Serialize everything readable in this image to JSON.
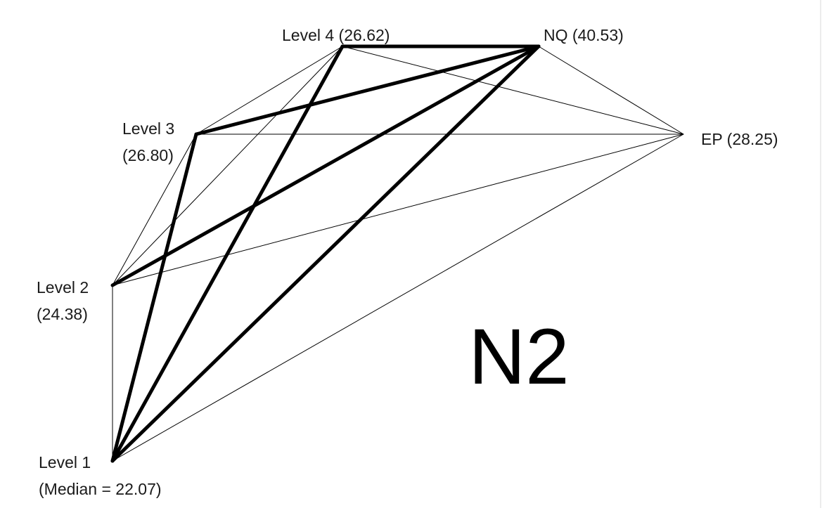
{
  "diagram": {
    "title": "N2",
    "nodes": [
      {
        "id": "level1",
        "label_lines": [
          "Level 1",
          "(Median = 22.07)"
        ]
      },
      {
        "id": "level2",
        "label_lines": [
          "Level 2",
          "(24.38)"
        ]
      },
      {
        "id": "level3",
        "label_lines": [
          "Level 3",
          "(26.80)"
        ]
      },
      {
        "id": "level4",
        "label_lines": [
          "Level 4 (26.62)"
        ]
      },
      {
        "id": "nq",
        "label_lines": [
          "NQ (40.53)"
        ]
      },
      {
        "id": "ep",
        "label_lines": [
          "EP (28.25)"
        ]
      }
    ],
    "edges": [
      {
        "from": "level1",
        "to": "level2",
        "weight": "thin"
      },
      {
        "from": "level1",
        "to": "level3",
        "weight": "thick"
      },
      {
        "from": "level1",
        "to": "level4",
        "weight": "thick"
      },
      {
        "from": "level1",
        "to": "nq",
        "weight": "thick"
      },
      {
        "from": "level1",
        "to": "ep",
        "weight": "thin"
      },
      {
        "from": "level2",
        "to": "level3",
        "weight": "thin"
      },
      {
        "from": "level2",
        "to": "level4",
        "weight": "thin"
      },
      {
        "from": "level2",
        "to": "nq",
        "weight": "thick"
      },
      {
        "from": "level2",
        "to": "ep",
        "weight": "thin"
      },
      {
        "from": "level3",
        "to": "level4",
        "weight": "thin"
      },
      {
        "from": "level3",
        "to": "nq",
        "weight": "thick"
      },
      {
        "from": "level3",
        "to": "ep",
        "weight": "thin"
      },
      {
        "from": "level4",
        "to": "nq",
        "weight": "thick"
      },
      {
        "from": "level4",
        "to": "ep",
        "weight": "thin"
      },
      {
        "from": "nq",
        "to": "ep",
        "weight": "thin"
      }
    ],
    "line_color": "#000000"
  }
}
